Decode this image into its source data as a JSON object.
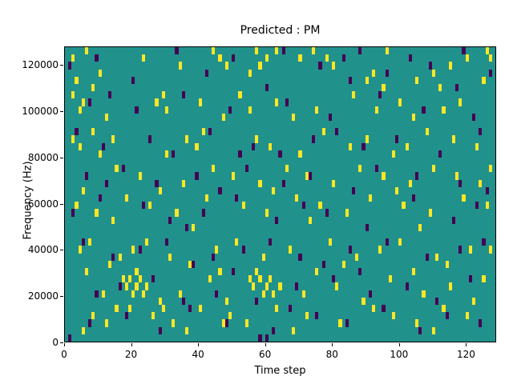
{
  "chart_data": {
    "type": "heatmap",
    "title": "Predicted : PM",
    "xlabel": "Time step",
    "ylabel": "Frequency (Hz)",
    "x_max": 129,
    "y_max_hz": 128000,
    "bins": 40,
    "bin_hz": 3200,
    "x_ticks": [
      0,
      20,
      40,
      60,
      80,
      100,
      120
    ],
    "y_ticks": [
      0,
      20000,
      40000,
      60000,
      80000,
      100000,
      120000
    ],
    "colors": {
      "background": "#21918c",
      "high": "#fde725",
      "low": "#440154"
    },
    "legend": "none",
    "grid": false,
    "cells": {
      "yellow": [
        [
          2,
          38
        ],
        [
          6,
          39
        ],
        [
          23,
          38
        ],
        [
          44,
          39
        ],
        [
          46,
          38
        ],
        [
          48,
          37
        ],
        [
          57,
          39
        ],
        [
          60,
          38
        ],
        [
          63,
          39
        ],
        [
          70,
          38
        ],
        [
          74,
          39
        ],
        [
          78,
          38
        ],
        [
          96,
          39
        ],
        [
          120,
          38
        ],
        [
          126,
          39
        ],
        [
          127,
          38
        ],
        [
          34,
          37
        ],
        [
          55,
          36
        ],
        [
          58,
          37
        ],
        [
          80,
          37
        ],
        [
          92,
          36
        ],
        [
          110,
          36
        ],
        [
          115,
          37
        ],
        [
          10,
          36
        ],
        [
          3,
          35
        ],
        [
          8,
          34
        ],
        [
          90,
          35
        ],
        [
          95,
          34
        ],
        [
          105,
          35
        ],
        [
          112,
          34
        ],
        [
          125,
          35
        ],
        [
          2,
          33
        ],
        [
          5,
          32
        ],
        [
          27,
          32
        ],
        [
          29,
          33
        ],
        [
          30,
          31
        ],
        [
          40,
          32
        ],
        [
          52,
          33
        ],
        [
          55,
          31
        ],
        [
          63,
          32
        ],
        [
          75,
          31
        ],
        [
          86,
          33
        ],
        [
          93,
          31
        ],
        [
          100,
          32
        ],
        [
          104,
          30
        ],
        [
          113,
          31
        ],
        [
          118,
          32
        ],
        [
          4,
          31
        ],
        [
          12,
          30
        ],
        [
          47,
          30
        ],
        [
          68,
          30
        ],
        [
          2,
          27
        ],
        [
          4,
          26
        ],
        [
          8,
          28
        ],
        [
          14,
          27
        ],
        [
          36,
          27
        ],
        [
          39,
          26
        ],
        [
          41,
          28
        ],
        [
          57,
          27
        ],
        [
          61,
          26
        ],
        [
          77,
          28
        ],
        [
          85,
          26
        ],
        [
          90,
          27
        ],
        [
          98,
          25
        ],
        [
          102,
          26
        ],
        [
          108,
          28
        ],
        [
          116,
          27
        ],
        [
          123,
          26
        ],
        [
          10,
          25
        ],
        [
          30,
          25
        ],
        [
          70,
          25
        ],
        [
          15,
          23
        ],
        [
          22,
          22
        ],
        [
          35,
          21
        ],
        [
          44,
          23
        ],
        [
          50,
          22
        ],
        [
          58,
          21
        ],
        [
          66,
          23
        ],
        [
          72,
          22
        ],
        [
          80,
          21
        ],
        [
          88,
          23
        ],
        [
          95,
          22
        ],
        [
          103,
          21
        ],
        [
          110,
          23
        ],
        [
          117,
          22
        ],
        [
          124,
          21
        ],
        [
          5,
          20
        ],
        [
          28,
          20
        ],
        [
          62,
          20
        ],
        [
          99,
          20
        ],
        [
          127,
          23
        ],
        [
          3,
          18
        ],
        [
          9,
          17
        ],
        [
          18,
          19
        ],
        [
          25,
          18
        ],
        [
          33,
          17
        ],
        [
          42,
          19
        ],
        [
          53,
          18
        ],
        [
          60,
          17
        ],
        [
          69,
          19
        ],
        [
          76,
          18
        ],
        [
          84,
          17
        ],
        [
          91,
          19
        ],
        [
          101,
          18
        ],
        [
          109,
          17
        ],
        [
          119,
          19
        ],
        [
          126,
          18
        ],
        [
          14,
          16
        ],
        [
          38,
          15
        ],
        [
          73,
          16
        ],
        [
          106,
          15
        ],
        [
          4,
          12
        ],
        [
          7,
          13
        ],
        [
          16,
          11
        ],
        [
          20,
          12
        ],
        [
          24,
          13
        ],
        [
          31,
          11
        ],
        [
          45,
          12
        ],
        [
          51,
          13
        ],
        [
          59,
          11
        ],
        [
          67,
          12
        ],
        [
          79,
          13
        ],
        [
          87,
          11
        ],
        [
          94,
          12
        ],
        [
          100,
          13
        ],
        [
          111,
          11
        ],
        [
          121,
          12
        ],
        [
          13,
          10
        ],
        [
          37,
          10
        ],
        [
          83,
          10
        ],
        [
          114,
          10
        ],
        [
          127,
          12
        ],
        [
          17,
          8
        ],
        [
          18,
          7
        ],
        [
          19,
          8
        ],
        [
          20,
          6
        ],
        [
          21,
          7
        ],
        [
          21,
          9
        ],
        [
          22,
          8
        ],
        [
          23,
          6
        ],
        [
          24,
          7
        ],
        [
          55,
          8
        ],
        [
          56,
          7
        ],
        [
          57,
          9
        ],
        [
          58,
          8
        ],
        [
          59,
          6
        ],
        [
          60,
          7
        ],
        [
          61,
          8
        ],
        [
          62,
          6
        ],
        [
          64,
          7
        ],
        [
          11,
          6
        ],
        [
          28,
          5
        ],
        [
          34,
          6
        ],
        [
          43,
          8
        ],
        [
          48,
          5
        ],
        [
          71,
          6
        ],
        [
          81,
          7
        ],
        [
          89,
          5
        ],
        [
          97,
          8
        ],
        [
          107,
          6
        ],
        [
          115,
          7
        ],
        [
          122,
          5
        ],
        [
          125,
          8
        ],
        [
          6,
          9
        ],
        [
          46,
          9
        ],
        [
          75,
          9
        ],
        [
          104,
          9
        ],
        [
          8,
          3
        ],
        [
          12,
          2
        ],
        [
          19,
          4
        ],
        [
          26,
          3
        ],
        [
          32,
          2
        ],
        [
          40,
          4
        ],
        [
          49,
          3
        ],
        [
          54,
          2
        ],
        [
          63,
          4
        ],
        [
          72,
          3
        ],
        [
          82,
          2
        ],
        [
          92,
          4
        ],
        [
          98,
          3
        ],
        [
          105,
          2
        ],
        [
          113,
          4
        ],
        [
          120,
          3
        ],
        [
          5,
          1
        ],
        [
          36,
          1
        ],
        [
          68,
          1
        ],
        [
          110,
          1
        ],
        [
          15,
          4
        ],
        [
          29,
          4
        ],
        [
          47,
          2
        ]
      ],
      "purple": [
        [
          9,
          38
        ],
        [
          33,
          39
        ],
        [
          50,
          38
        ],
        [
          65,
          39
        ],
        [
          83,
          38
        ],
        [
          88,
          39
        ],
        [
          103,
          38
        ],
        [
          119,
          39
        ],
        [
          1,
          37
        ],
        [
          42,
          36
        ],
        [
          76,
          37
        ],
        [
          96,
          36
        ],
        [
          109,
          37
        ],
        [
          127,
          36
        ],
        [
          20,
          35
        ],
        [
          60,
          34
        ],
        [
          85,
          35
        ],
        [
          117,
          34
        ],
        [
          7,
          32
        ],
        [
          21,
          31
        ],
        [
          35,
          33
        ],
        [
          49,
          31
        ],
        [
          66,
          32
        ],
        [
          79,
          30
        ],
        [
          94,
          33
        ],
        [
          107,
          31
        ],
        [
          122,
          30
        ],
        [
          13,
          33
        ],
        [
          3,
          28
        ],
        [
          11,
          26
        ],
        [
          25,
          27
        ],
        [
          43,
          28
        ],
        [
          56,
          26
        ],
        [
          64,
          25
        ],
        [
          74,
          27
        ],
        [
          81,
          28
        ],
        [
          89,
          26
        ],
        [
          99,
          27
        ],
        [
          112,
          25
        ],
        [
          124,
          28
        ],
        [
          32,
          25
        ],
        [
          52,
          25
        ],
        [
          6,
          22
        ],
        [
          17,
          23
        ],
        [
          27,
          21
        ],
        [
          39,
          22
        ],
        [
          54,
          23
        ],
        [
          65,
          21
        ],
        [
          73,
          22
        ],
        [
          86,
          20
        ],
        [
          93,
          23
        ],
        [
          105,
          22
        ],
        [
          118,
          21
        ],
        [
          126,
          20
        ],
        [
          46,
          20
        ],
        [
          12,
          21
        ],
        [
          2,
          17
        ],
        [
          10,
          19
        ],
        [
          23,
          18
        ],
        [
          31,
          16
        ],
        [
          41,
          17
        ],
        [
          51,
          19
        ],
        [
          63,
          16
        ],
        [
          71,
          18
        ],
        [
          78,
          17
        ],
        [
          90,
          15
        ],
        [
          104,
          19
        ],
        [
          116,
          16
        ],
        [
          123,
          18
        ],
        [
          36,
          15
        ],
        [
          5,
          13
        ],
        [
          14,
          11
        ],
        [
          22,
          12
        ],
        [
          30,
          13
        ],
        [
          44,
          11
        ],
        [
          53,
          12
        ],
        [
          61,
          13
        ],
        [
          70,
          11
        ],
        [
          85,
          12
        ],
        [
          96,
          13
        ],
        [
          108,
          11
        ],
        [
          125,
          13
        ],
        [
          38,
          10
        ],
        [
          77,
          10
        ],
        [
          118,
          12
        ],
        [
          9,
          6
        ],
        [
          16,
          7
        ],
        [
          26,
          8
        ],
        [
          35,
          5
        ],
        [
          45,
          6
        ],
        [
          57,
          5
        ],
        [
          69,
          7
        ],
        [
          80,
          8
        ],
        [
          91,
          6
        ],
        [
          102,
          7
        ],
        [
          111,
          5
        ],
        [
          121,
          8
        ],
        [
          50,
          9
        ],
        [
          88,
          9
        ],
        [
          1,
          0
        ],
        [
          7,
          2
        ],
        [
          18,
          3
        ],
        [
          28,
          1
        ],
        [
          37,
          4
        ],
        [
          48,
          2
        ],
        [
          58,
          0
        ],
        [
          62,
          1
        ],
        [
          75,
          3
        ],
        [
          84,
          2
        ],
        [
          95,
          4
        ],
        [
          106,
          1
        ],
        [
          114,
          3
        ],
        [
          124,
          2
        ],
        [
          60,
          0
        ],
        [
          67,
          4
        ]
      ]
    }
  }
}
